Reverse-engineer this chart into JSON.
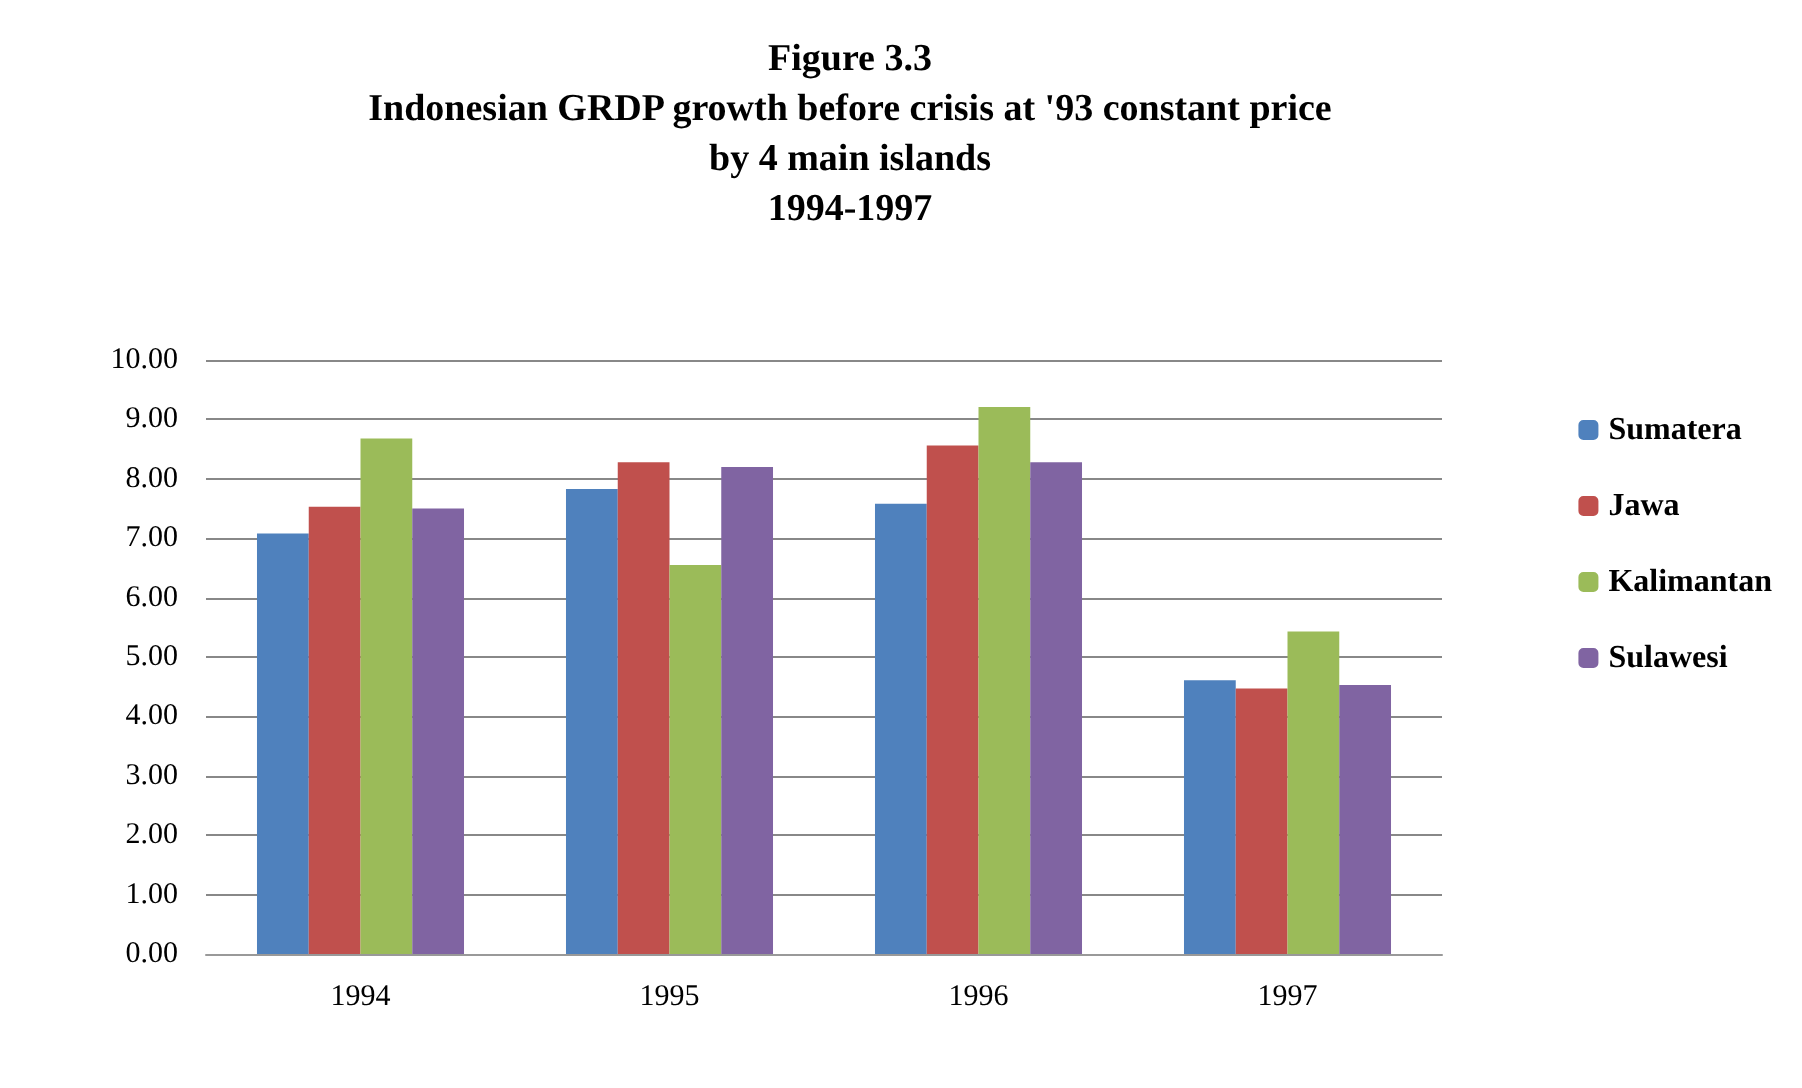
{
  "chart_data": {
    "type": "bar",
    "title": "Figure 3.3\nIndonesian GRDP growth before crisis at '93 constant price\nby 4 main islands\n1994-1997",
    "categories": [
      "1994",
      "1995",
      "1996",
      "1997"
    ],
    "series": [
      {
        "name": "Sumatera",
        "color": "#4f81bd",
        "values": [
          7.08,
          7.83,
          7.58,
          4.61
        ]
      },
      {
        "name": "Jawa",
        "color": "#c0504d",
        "values": [
          7.53,
          8.28,
          8.56,
          4.47
        ]
      },
      {
        "name": "Kalimantan",
        "color": "#9bbb59",
        "values": [
          8.68,
          6.55,
          9.21,
          5.43
        ]
      },
      {
        "name": "Sulawesi",
        "color": "#8064a2",
        "values": [
          7.5,
          8.2,
          8.28,
          4.53
        ]
      }
    ],
    "ylim": [
      0,
      10
    ],
    "yticks": [
      {
        "value": 0,
        "label": "0.00"
      },
      {
        "value": 1,
        "label": "1.00"
      },
      {
        "value": 2,
        "label": "2.00"
      },
      {
        "value": 3,
        "label": "3.00"
      },
      {
        "value": 4,
        "label": "4.00"
      },
      {
        "value": 5,
        "label": "5.00"
      },
      {
        "value": 6,
        "label": "6.00"
      },
      {
        "value": 7,
        "label": "7.00"
      },
      {
        "value": 8,
        "label": "8.00"
      },
      {
        "value": 9,
        "label": "9.00"
      },
      {
        "value": 10,
        "label": "10.00"
      }
    ],
    "grid": "y",
    "legend": "right"
  }
}
